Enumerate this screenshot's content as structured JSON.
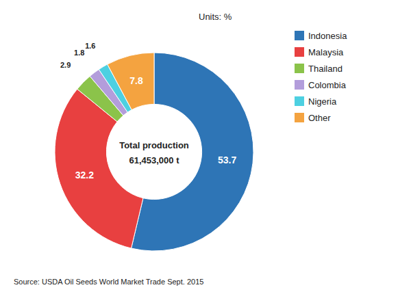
{
  "chart_data": {
    "type": "pie",
    "categories": [
      "Indonesia",
      "Malaysia",
      "Thailand",
      "Colombia",
      "Nigeria",
      "Other"
    ],
    "values": [
      53.7,
      32.2,
      2.9,
      1.8,
      1.6,
      7.8
    ],
    "colors": [
      "#2e75b6",
      "#e84040",
      "#8bc34a",
      "#b39ddb",
      "#4dd0e1",
      "#f4a340"
    ],
    "annotations": [
      "Total production",
      "61,453,000 t",
      "Units: %",
      "Source: USDA  Oil Seeds World Market Trade Sept. 2015"
    ],
    "data_labels": true,
    "legend": "upper right"
  }
}
